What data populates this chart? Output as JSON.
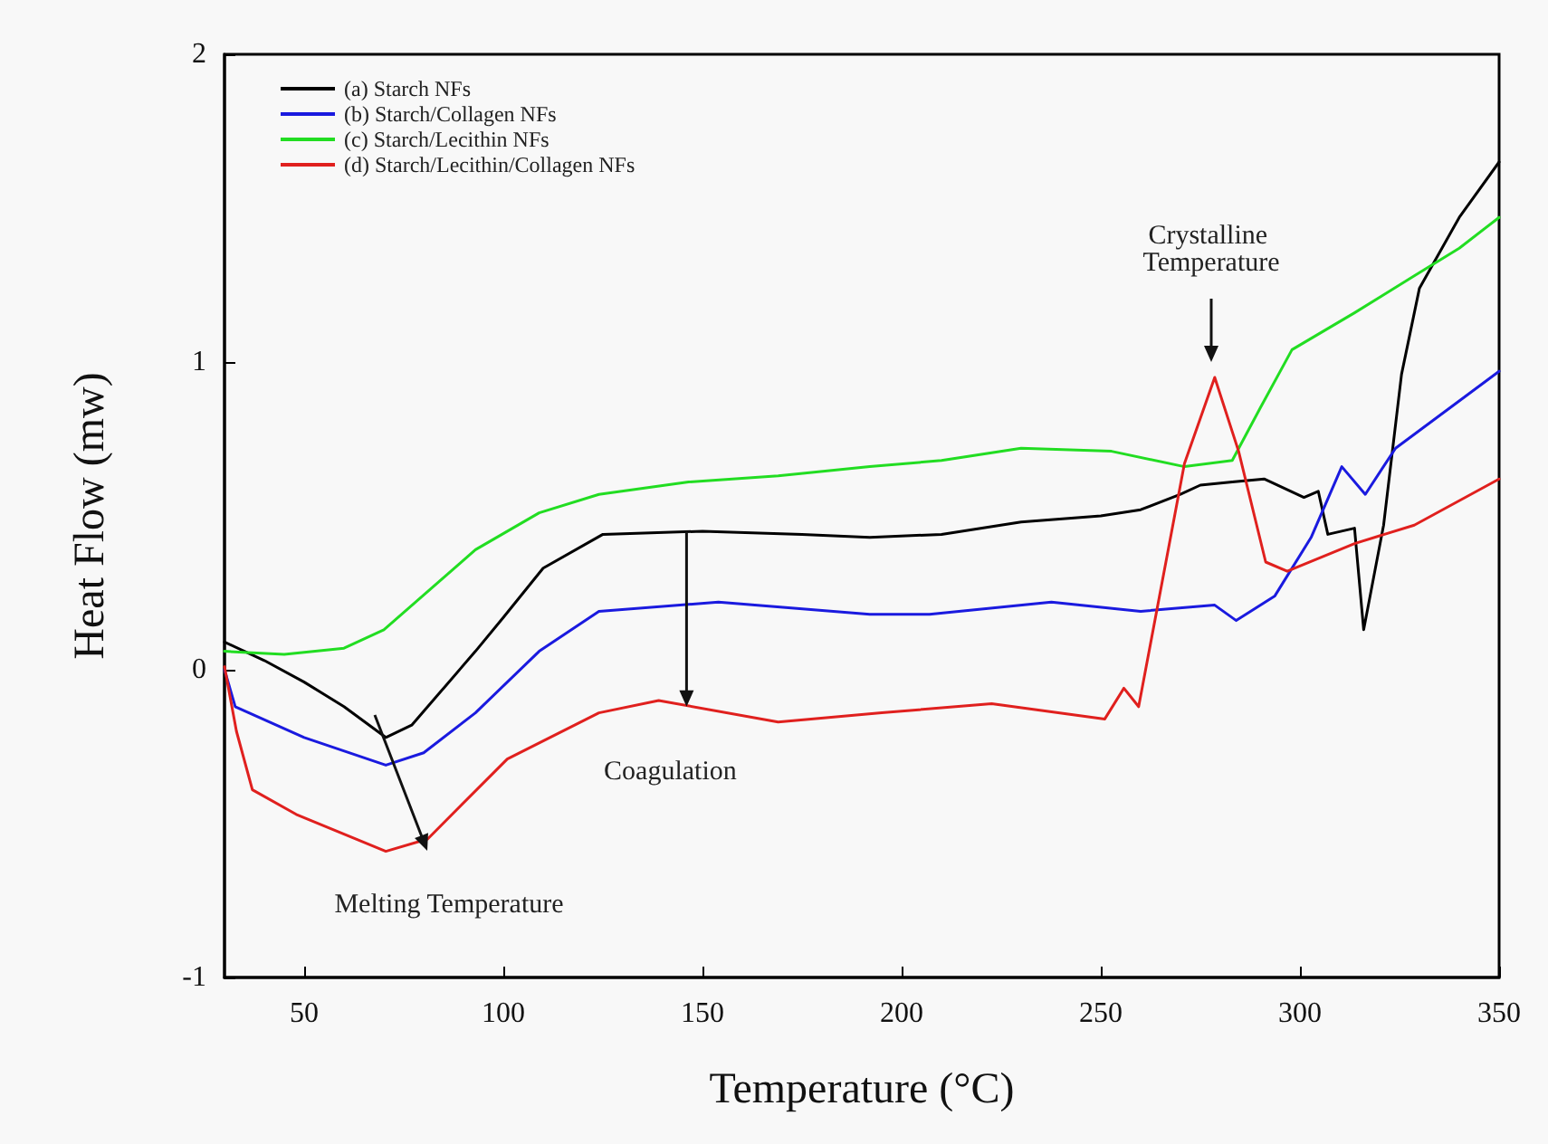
{
  "chart_data": {
    "type": "line",
    "xlabel": "Temperature (°C)",
    "ylabel": "Heat Flow (mw)",
    "xlim": [
      30,
      350
    ],
    "xticks": [
      50,
      100,
      150,
      200,
      250,
      300,
      350
    ],
    "ylim": [
      -1,
      2
    ],
    "yticks": [
      -1,
      0,
      1,
      2
    ],
    "grid": false,
    "legend": "top left",
    "marker": "none",
    "line_style": "solid",
    "series": [
      {
        "name": "(a) Starch NFs",
        "color": "#000000",
        "x": [
          30,
          40,
          50,
          60,
          70.5,
          77,
          85,
          93,
          100,
          110,
          125,
          150,
          175,
          192,
          210,
          230,
          250,
          260,
          270,
          275,
          283,
          291,
          301,
          304.6,
          307,
          313.7,
          316,
          321,
          325.5,
          330,
          340,
          350
        ],
        "values": [
          0.09,
          0.03,
          -0.04,
          -0.12,
          -0.22,
          -0.18,
          -0.06,
          0.06,
          0.17,
          0.33,
          0.44,
          0.45,
          0.44,
          0.43,
          0.44,
          0.48,
          0.5,
          0.52,
          0.57,
          0.6,
          0.61,
          0.62,
          0.56,
          0.58,
          0.44,
          0.46,
          0.13,
          0.47,
          0.96,
          1.24,
          1.47,
          1.65
        ]
      },
      {
        "name": "(b) Starch/Collagen NFs",
        "color": "#1a1adf",
        "x": [
          30,
          32.7,
          50,
          70.5,
          80,
          93,
          109,
          124,
          154,
          192,
          207,
          237.6,
          260,
          278.6,
          284,
          293.7,
          302.8,
          310.5,
          316.4,
          324,
          350
        ],
        "values": [
          0.0,
          -0.12,
          -0.22,
          -0.31,
          -0.27,
          -0.14,
          0.06,
          0.19,
          0.22,
          0.18,
          0.18,
          0.22,
          0.19,
          0.21,
          0.16,
          0.24,
          0.43,
          0.66,
          0.57,
          0.72,
          0.97
        ]
      },
      {
        "name": "(c) Starch/Lecithin NFs",
        "color": "#22dd22",
        "x": [
          30,
          45,
          60,
          70,
          78,
          93,
          109,
          124,
          146.5,
          169,
          192,
          210,
          230,
          252.7,
          271,
          283,
          290,
          298,
          313.7,
          328.7,
          340,
          350
        ],
        "values": [
          0.06,
          0.05,
          0.07,
          0.13,
          0.22,
          0.39,
          0.51,
          0.57,
          0.61,
          0.63,
          0.66,
          0.68,
          0.72,
          0.71,
          0.66,
          0.68,
          0.85,
          1.04,
          1.16,
          1.28,
          1.37,
          1.47
        ]
      },
      {
        "name": "(d) Starch/Lecithin/Collagen NFs",
        "color": "#e0201e",
        "x": [
          30,
          33,
          37,
          48,
          70.5,
          81,
          101,
          124,
          139,
          169,
          195,
          222.6,
          251,
          255.8,
          259.5,
          271,
          278.6,
          284.6,
          291.4,
          296.8,
          313.7,
          328.7,
          350
        ],
        "values": [
          0.01,
          -0.2,
          -0.39,
          -0.47,
          -0.59,
          -0.55,
          -0.29,
          -0.14,
          -0.1,
          -0.17,
          -0.14,
          -0.11,
          -0.16,
          -0.06,
          -0.12,
          0.67,
          0.95,
          0.71,
          0.35,
          0.32,
          0.41,
          0.47,
          0.62
        ]
      }
    ],
    "annotations": [
      "Crystalline Temperature",
      {
        "text": "Coagulation",
        "x": 146,
        "y": -0.12
      },
      "Melting Temperature"
    ]
  }
}
